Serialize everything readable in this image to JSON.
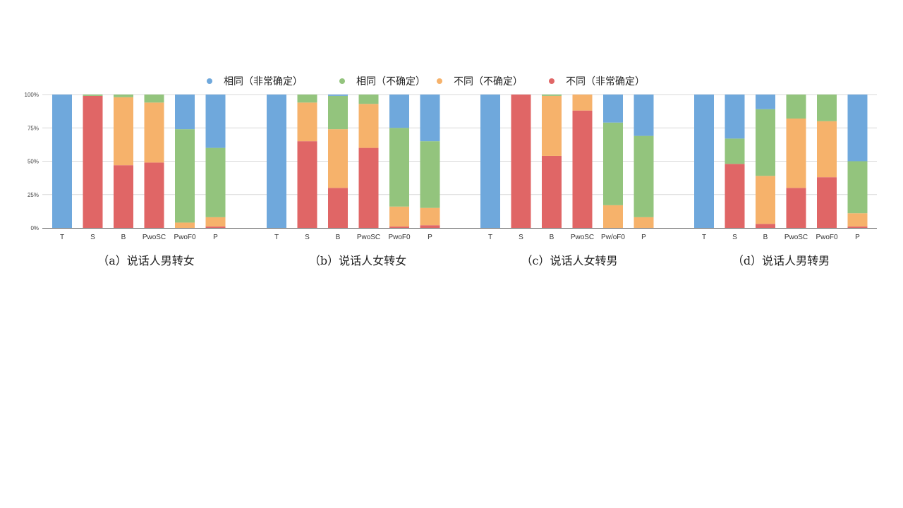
{
  "chart_data": {
    "type": "bar",
    "stacked": true,
    "orientation": "vertical",
    "grid": true,
    "legend_position": "top",
    "ylim": [
      0,
      100
    ],
    "y_ticks": [
      "0%",
      "25%",
      "50%",
      "75%",
      "100%"
    ],
    "legend": [
      {
        "name": "相同（非常确定）",
        "color": "#6fa8dc"
      },
      {
        "name": "相同（不确定）",
        "color": "#93c47d"
      },
      {
        "name": "不同（不确定）",
        "color": "#f6b26b"
      },
      {
        "name": "不同（非常确定）",
        "color": "#e06666"
      }
    ],
    "panels": [
      {
        "caption": "（a）说话人男转女",
        "categories": [
          "T",
          "S",
          "B",
          "PwoSC",
          "PwoF0",
          "P"
        ],
        "series": [
          {
            "name": "不同（非常确定）",
            "values": [
              0,
              99,
              47,
              49,
              0,
              1
            ]
          },
          {
            "name": "不同（不确定）",
            "values": [
              0,
              0,
              51,
              45,
              4,
              7
            ]
          },
          {
            "name": "相同（不确定）",
            "values": [
              0,
              1,
              2,
              6,
              70,
              52
            ]
          },
          {
            "name": "相同（非常确定）",
            "values": [
              100,
              0,
              0,
              0,
              26,
              40
            ]
          }
        ]
      },
      {
        "caption": "（b）说话人女转女",
        "categories": [
          "T",
          "S",
          "B",
          "PwoSC",
          "PwoF0",
          "P"
        ],
        "series": [
          {
            "name": "不同（非常确定）",
            "values": [
              0,
              65,
              30,
              60,
              1,
              2
            ]
          },
          {
            "name": "不同（不确定）",
            "values": [
              0,
              29,
              44,
              33,
              15,
              13
            ]
          },
          {
            "name": "相同（不确定）",
            "values": [
              0,
              6,
              25,
              7,
              59,
              50
            ]
          },
          {
            "name": "相同（非常确定）",
            "values": [
              100,
              0,
              1,
              0,
              25,
              35
            ]
          }
        ]
      },
      {
        "caption": "（c）说话人女转男",
        "categories": [
          "T",
          "S",
          "B",
          "PwoSC",
          "Pw/oF0",
          "P"
        ],
        "series": [
          {
            "name": "不同（非常确定）",
            "values": [
              0,
              100,
              54,
              88,
              0,
              0
            ]
          },
          {
            "name": "不同（不确定）",
            "values": [
              0,
              0,
              45,
              12,
              17,
              8
            ]
          },
          {
            "name": "相同（不确定）",
            "values": [
              0,
              0,
              1,
              0,
              62,
              61
            ]
          },
          {
            "name": "相同（非常确定）",
            "values": [
              100,
              0,
              0,
              0,
              21,
              31
            ]
          }
        ]
      },
      {
        "caption": "（d）说话人男转男",
        "categories": [
          "T",
          "S",
          "B",
          "PwoSC",
          "PwoF0",
          "P"
        ],
        "series": [
          {
            "name": "不同（非常确定）",
            "values": [
              0,
              48,
              3,
              30,
              38,
              1
            ]
          },
          {
            "name": "不同（不确定）",
            "values": [
              0,
              0,
              36,
              52,
              42,
              10
            ]
          },
          {
            "name": "相同（不确定）",
            "values": [
              0,
              19,
              50,
              18,
              20,
              39
            ]
          },
          {
            "name": "相同（非常确定）",
            "values": [
              100,
              33,
              11,
              0,
              0,
              50
            ]
          }
        ]
      }
    ]
  }
}
